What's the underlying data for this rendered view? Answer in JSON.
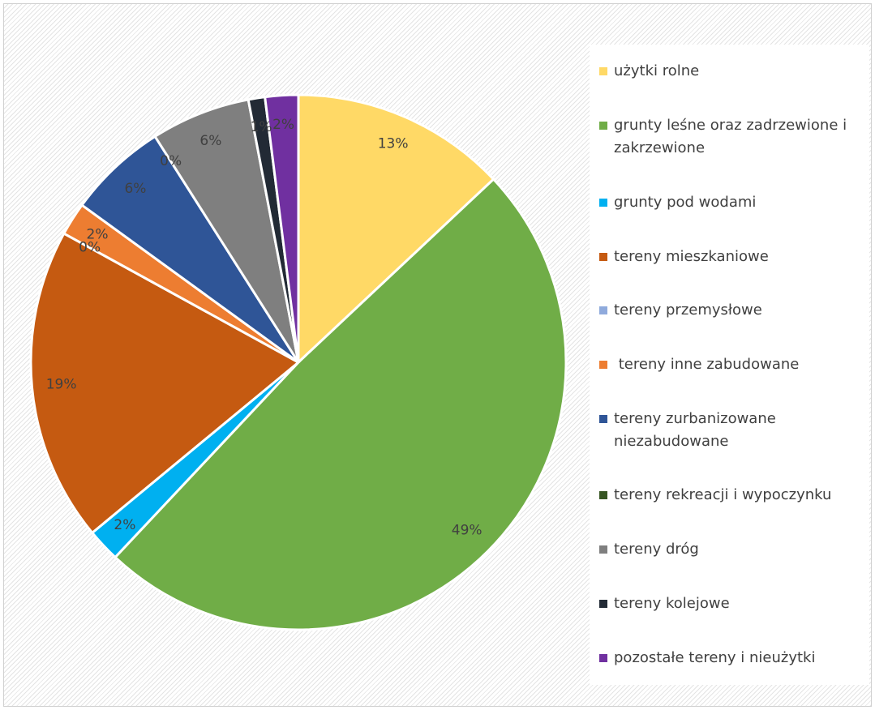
{
  "chart_data": {
    "type": "pie",
    "categories": [
      "użytki rolne",
      "grunty leśne oraz zadrzewione i zakrzewione",
      "grunty pod wodami",
      "tereny mieszkaniowe",
      "tereny przemysłowe",
      " tereny inne zabudowane",
      "tereny zurbanizowane niezabudowane",
      "tereny rekreacji i wypoczynku",
      "tereny dróg",
      "tereny kolejowe",
      "pozostałe tereny i nieużytki"
    ],
    "values": [
      13,
      49,
      2,
      19,
      0,
      2,
      6,
      0,
      6,
      1,
      2
    ],
    "value_labels": [
      "13%",
      "49%",
      "2%",
      "19%",
      "0%",
      "2%",
      "6%",
      "0%",
      "6%",
      "1%",
      "2%"
    ],
    "colors": [
      "#FFD966",
      "#70AD47",
      "#00B0F0",
      "#C55A11",
      "#8FAADC",
      "#ED7D31",
      "#2F5597",
      "#375623",
      "#7F7F7F",
      "#222A35",
      "#7030A0"
    ],
    "legend_position": "right"
  }
}
